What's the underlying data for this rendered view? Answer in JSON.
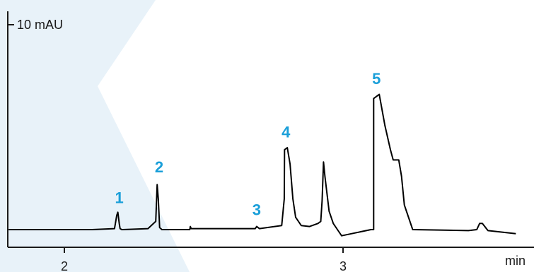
{
  "chart_data": {
    "type": "line",
    "title": "",
    "xlabel": "",
    "ylabel": "",
    "x_unit": "min",
    "scale_bar_label": "10 mAU",
    "scale_bar_value": 10,
    "x_ticks": [
      2,
      3
    ],
    "xlim": [
      1.8,
      3.62
    ],
    "ylim": [
      -1.3,
      12.7
    ],
    "grid": false,
    "colors": {
      "trace": "#000000",
      "peak_label": "#1a9fd9",
      "background_band": "#e8f2f9"
    },
    "series": [
      {
        "values_note": "",
        "x": [
          1.8,
          2.1,
          2.18,
          2.188,
          2.192,
          2.197,
          2.2,
          2.206,
          2.21,
          2.3,
          2.328,
          2.333,
          2.337,
          2.342,
          2.35,
          2.45,
          2.452,
          2.455,
          2.48,
          2.49,
          2.6,
          2.685,
          2.69,
          2.7,
          2.78,
          2.789,
          2.79,
          2.8,
          2.81,
          2.82,
          2.83,
          2.85,
          2.88,
          2.91,
          2.92,
          2.925,
          2.93,
          2.935,
          2.95,
          2.965,
          2.98,
          2.995,
          3.1,
          3.11,
          3.11,
          3.13,
          3.15,
          3.17,
          3.18,
          3.2,
          3.21,
          3.22,
          3.25,
          3.45,
          3.48,
          3.49,
          3.5,
          3.52,
          3.62
        ],
        "y": [
          0.0,
          0.0,
          0.05,
          0.7,
          0.85,
          0.3,
          0.05,
          0.0,
          0.0,
          0.05,
          0.4,
          2.2,
          1.5,
          0.1,
          0.0,
          0.0,
          0.15,
          0.05,
          0.05,
          0.05,
          0.05,
          0.05,
          0.15,
          0.05,
          0.2,
          1.5,
          3.9,
          4.0,
          3.2,
          1.5,
          0.6,
          0.2,
          0.15,
          0.3,
          0.4,
          1.4,
          3.3,
          2.6,
          0.9,
          0.3,
          0.0,
          -0.3,
          0.0,
          0.0,
          6.4,
          6.6,
          5.1,
          3.9,
          3.4,
          3.4,
          2.6,
          1.2,
          0.0,
          -0.05,
          0.0,
          0.3,
          0.3,
          -0.05,
          -0.2
        ]
      }
    ],
    "peak_labels": [
      {
        "text": "1",
        "x": 2.197,
        "y": 1.3
      },
      {
        "text": "2",
        "x": 2.34,
        "y": 2.8
      },
      {
        "text": "3",
        "x": 2.69,
        "y": 0.7
      },
      {
        "text": "4",
        "x": 2.795,
        "y": 4.5
      },
      {
        "text": "5",
        "x": 3.12,
        "y": 7.1
      }
    ]
  }
}
